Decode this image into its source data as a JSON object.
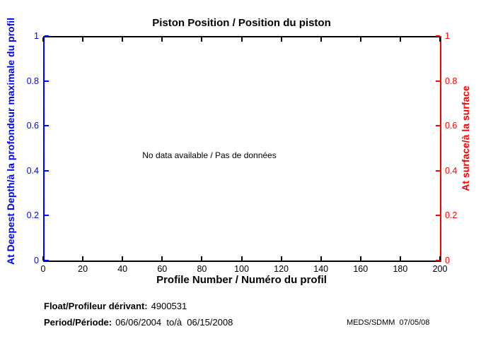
{
  "chart_data": {
    "type": "line",
    "title": "Piston Position / Position du piston",
    "xlabel": "Profile Number / Numéro du profil",
    "no_data_message": "No data available / Pas de données",
    "frame_color": "#000000",
    "background": "#ffffff",
    "grid": false,
    "series": [],
    "x_axis": {
      "lim": [
        0,
        200
      ],
      "ticks": [
        0,
        20,
        40,
        60,
        80,
        100,
        120,
        140,
        160,
        180,
        200
      ]
    },
    "left_axis": {
      "label": "At Deepest Depth/à la profondeur maximale du profil",
      "color": "#0000ff",
      "lim": [
        0,
        1
      ],
      "ticks": [
        0,
        0.2,
        0.4,
        0.6,
        0.8,
        1
      ]
    },
    "right_axis": {
      "label": "At surface/à la surface",
      "color": "#ff0000",
      "lim": [
        0,
        1
      ],
      "ticks": [
        0,
        0.2,
        0.4,
        0.6,
        0.8,
        1
      ]
    }
  },
  "footer": {
    "float_label": "Float/Profileur dérivant:",
    "float_value": "4900531",
    "period_label": "Period/Période:",
    "period_value": "06/06/2004  to/à  06/15/2008",
    "credit": "MEDS/SDMM  07/05/08"
  }
}
